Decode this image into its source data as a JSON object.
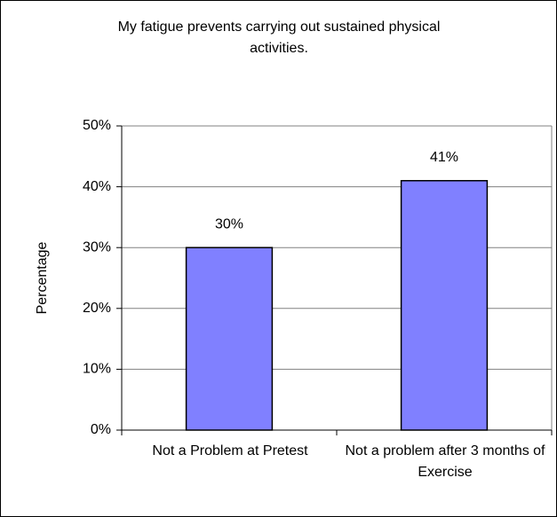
{
  "chart_data": {
    "type": "bar",
    "title": "My fatigue prevents carrying out sustained physical activities.",
    "y_label": "Percentage",
    "categories": [
      "Not a Problem at Pretest",
      "Not a problem after 3 months of Exercise"
    ],
    "values": [
      30,
      41
    ],
    "value_labels": [
      "30%",
      "41%"
    ],
    "color": "#8080ff",
    "ylim": [
      0,
      50
    ],
    "yticks": [
      {
        "value": 0,
        "label": "0%"
      },
      {
        "value": 10,
        "label": "10%"
      },
      {
        "value": 20,
        "label": "20%"
      },
      {
        "value": 30,
        "label": "30%"
      },
      {
        "value": 40,
        "label": "40%"
      },
      {
        "value": 50,
        "label": "50%"
      }
    ],
    "grid": true
  }
}
